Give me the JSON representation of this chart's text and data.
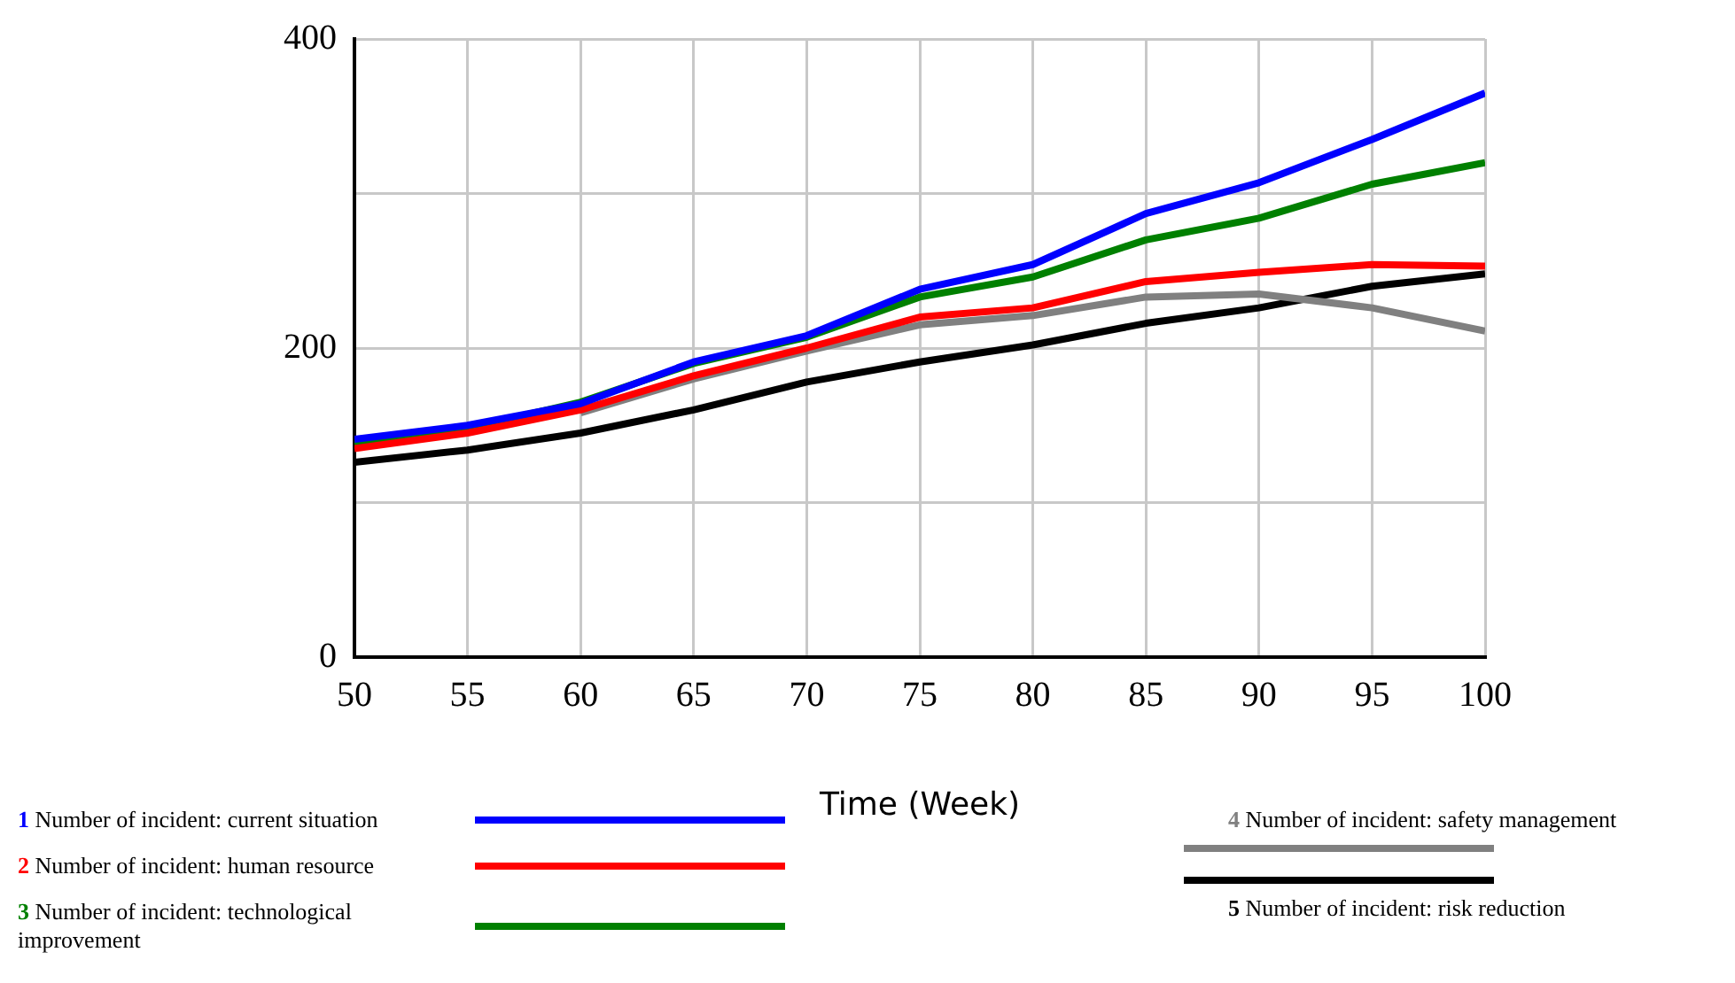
{
  "chart_data": {
    "type": "line",
    "xlabel": "Time (Week)",
    "x": [
      50,
      55,
      60,
      65,
      70,
      75,
      80,
      85,
      90,
      95,
      100
    ],
    "xlim": [
      50,
      100
    ],
    "xticks": [
      50,
      55,
      60,
      65,
      70,
      75,
      80,
      85,
      90,
      95,
      100
    ],
    "ylim": [
      0,
      400
    ],
    "yticks": [
      0,
      {
        "value": 100,
        "label": null
      },
      200,
      {
        "value": 300,
        "label": null
      },
      400
    ],
    "grid": true,
    "legend": "bottom",
    "series": [
      {
        "name": "1 Number of incident: current situation",
        "color": "#0000ff",
        "values": [
          141,
          150,
          164,
          191,
          208,
          238,
          254,
          287,
          307,
          335,
          365
        ]
      },
      {
        "name": "2 Number of incident: human resource",
        "color": "#ff0000",
        "values": [
          135,
          145,
          160,
          182,
          200,
          220,
          226,
          243,
          249,
          254,
          253
        ]
      },
      {
        "name": "3 Number of incident: technological improvement",
        "color": "#008000",
        "values": [
          138,
          148,
          165,
          190,
          207,
          233,
          246,
          270,
          284,
          306,
          320
        ]
      },
      {
        "name": "4 Number of incident: safety management",
        "color": "#808080",
        "values": [
          null,
          null,
          158,
          180,
          198,
          215,
          221,
          233,
          235,
          226,
          211
        ]
      },
      {
        "name": "5 Number of incident: risk reduction",
        "color": "#000000",
        "values": [
          126,
          134,
          145,
          160,
          178,
          191,
          202,
          216,
          226,
          240,
          248
        ]
      }
    ]
  }
}
